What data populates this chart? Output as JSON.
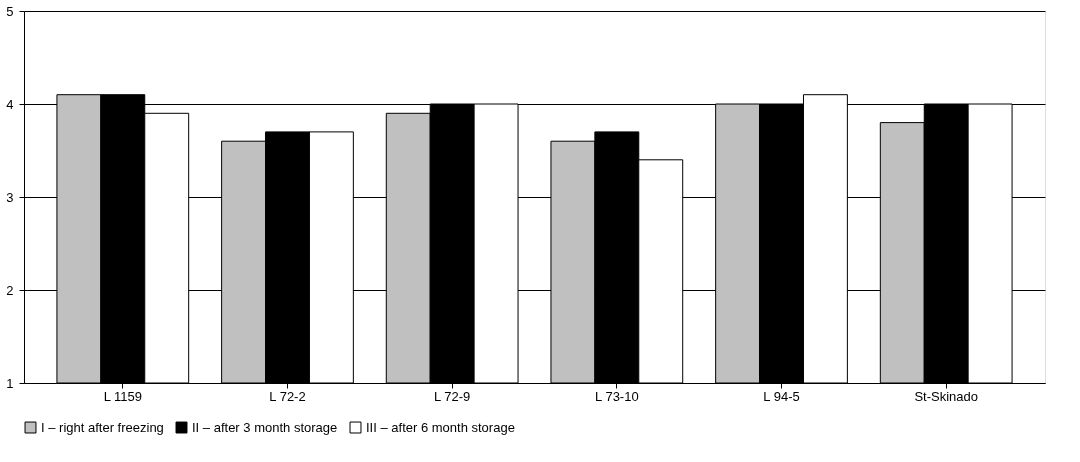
{
  "chart_data": {
    "type": "bar",
    "categories": [
      "L 1159",
      "L 72-2",
      "L 72-9",
      "L 73-10",
      "L 94-5",
      "St-Skinado"
    ],
    "series": [
      {
        "name": "I – right after freezing",
        "color": "#c0c0c0",
        "values": [
          4.1,
          3.6,
          3.9,
          3.6,
          4.0,
          3.8
        ]
      },
      {
        "name": "II – after 3 month storage",
        "color": "#000000",
        "values": [
          4.1,
          3.7,
          4.0,
          3.7,
          4.0,
          4.0
        ]
      },
      {
        "name": "III – after 6 month storage",
        "color": "#ffffff",
        "values": [
          3.9,
          3.7,
          4.0,
          3.4,
          4.1,
          4.0
        ]
      }
    ],
    "ylim": [
      1,
      5
    ],
    "yticks": [
      1,
      2,
      3,
      4,
      5
    ],
    "grid": "y",
    "legend": "bottom"
  }
}
